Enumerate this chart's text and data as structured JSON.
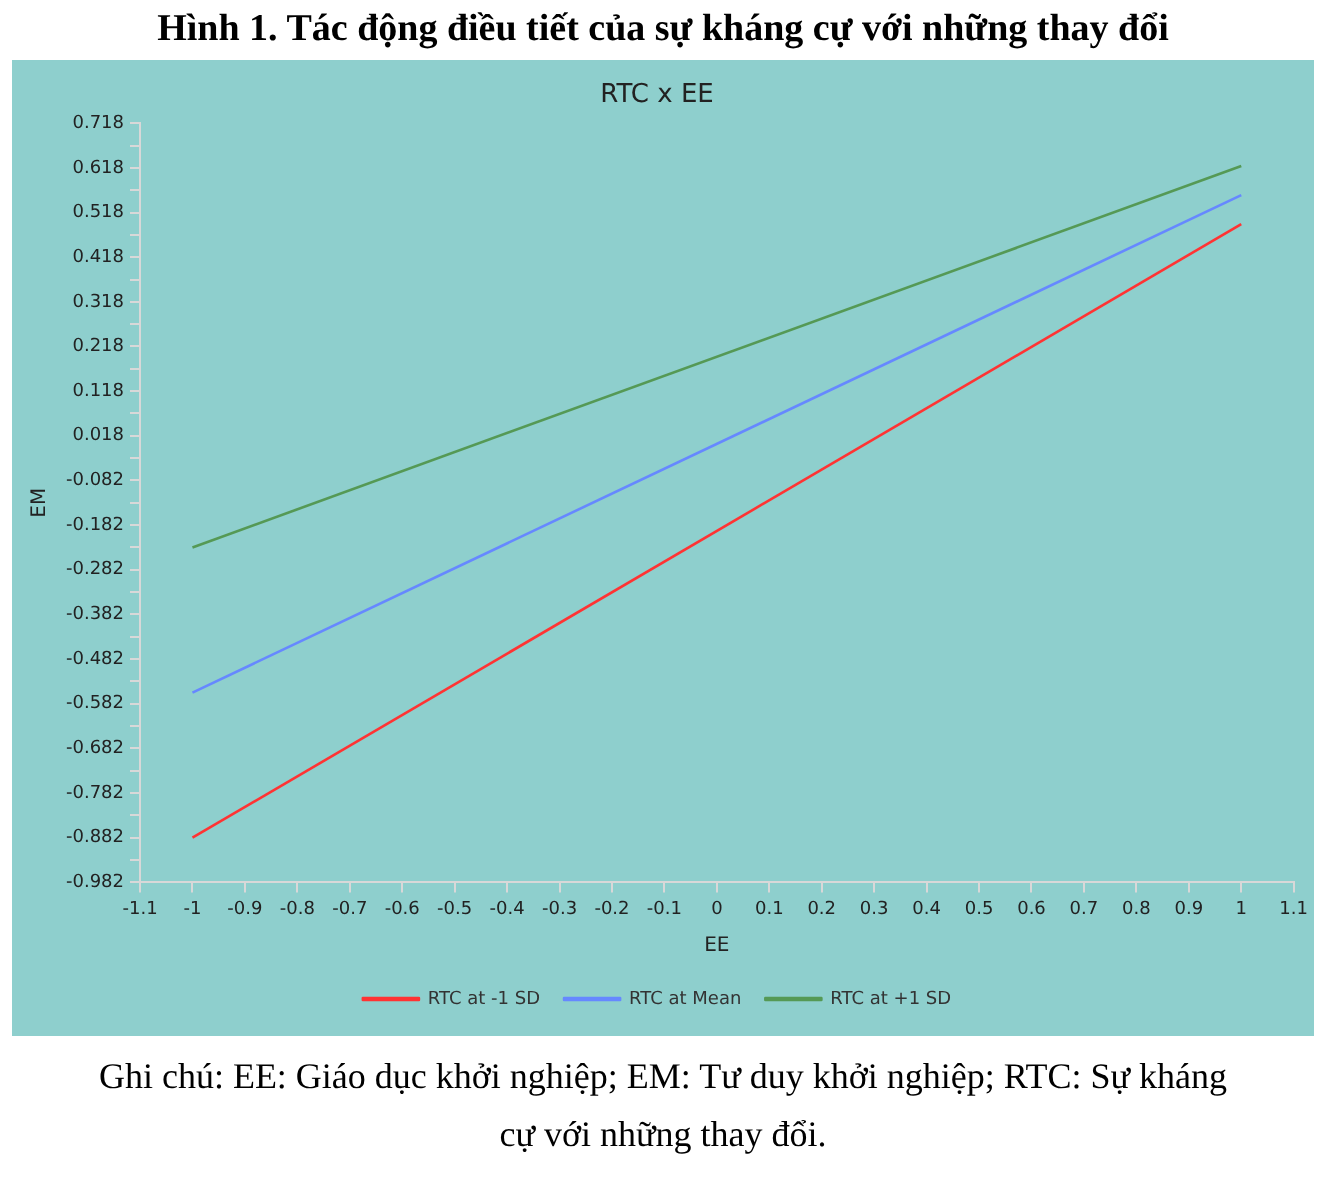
{
  "chart_data": {
    "type": "line",
    "title": "RTC x EE",
    "subtitle": "Hình 1. Tác động điều tiết của sự kháng cự với những thay đổi",
    "xlabel": "EE",
    "ylabel": "EM",
    "x": [
      -1,
      1
    ],
    "series": [
      {
        "name": "RTC at -1 SD",
        "color": "#ff3333",
        "values": [
          -0.882,
          0.492
        ]
      },
      {
        "name": "RTC at Mean",
        "color": "#6688ff",
        "values": [
          -0.557,
          0.557
        ]
      },
      {
        "name": "RTC at +1 SD",
        "color": "#559955",
        "values": [
          -0.232,
          0.622
        ]
      }
    ],
    "xlim": [
      -1.1,
      1.1
    ],
    "xticks": [
      -1.1,
      -1,
      -0.9,
      -0.8,
      -0.7,
      -0.6,
      -0.5,
      -0.4,
      -0.3,
      -0.2,
      -0.1,
      0,
      0.1,
      0.2,
      0.3,
      0.4,
      0.5,
      0.6,
      0.7,
      0.8,
      0.9,
      1,
      1.1
    ],
    "ylim": [
      -0.982,
      0.718
    ],
    "yticks": [
      -0.982,
      {
        "value": -0.932,
        "label": null
      },
      -0.882,
      {
        "value": -0.832,
        "label": null
      },
      -0.782,
      {
        "value": -0.732,
        "label": null
      },
      -0.682,
      {
        "value": -0.632,
        "label": null
      },
      -0.582,
      {
        "value": -0.532,
        "label": null
      },
      -0.482,
      {
        "value": -0.432,
        "label": null
      },
      -0.382,
      {
        "value": -0.332,
        "label": null
      },
      -0.282,
      {
        "value": -0.232,
        "label": null
      },
      -0.182,
      {
        "value": -0.132,
        "label": null
      },
      -0.082,
      {
        "value": -0.032,
        "label": null
      },
      0.018,
      {
        "value": 0.068,
        "label": null
      },
      0.118,
      {
        "value": 0.168,
        "label": null
      },
      0.218,
      {
        "value": 0.268,
        "label": null
      },
      0.318,
      {
        "value": 0.368,
        "label": null
      },
      0.418,
      {
        "value": 0.468,
        "label": null
      },
      0.518,
      {
        "value": 0.568,
        "label": null
      },
      0.618,
      {
        "value": 0.668,
        "label": null
      },
      0.718
    ],
    "grid": false,
    "legend": "bottom",
    "marker": "none",
    "line_style": "solid",
    "annotations": [
      "Ghi chú: EE: Giáo dục khởi nghiệp; EM: Tư duy khởi nghiệp; RTC: Sự kháng cự với những thay đổi."
    ]
  }
}
